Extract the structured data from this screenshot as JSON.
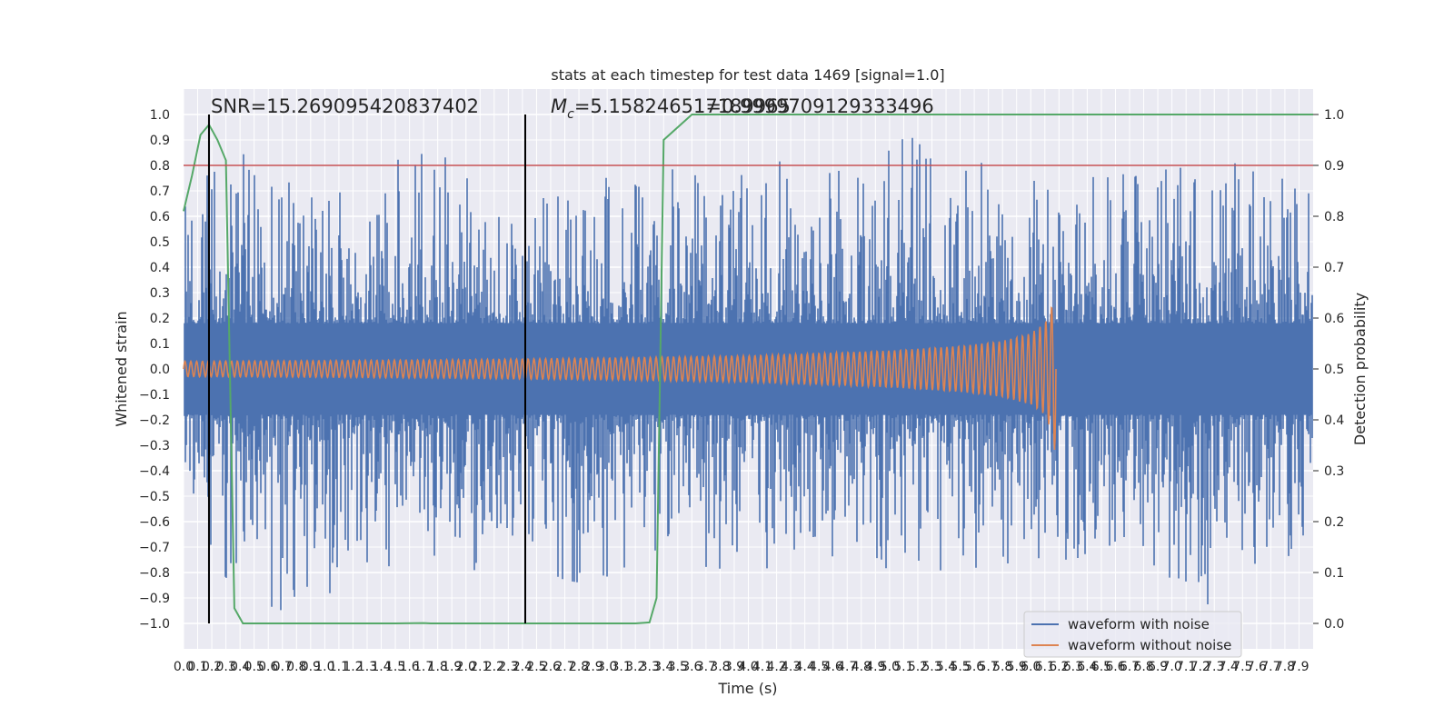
{
  "chart_data": {
    "type": "line",
    "title": "stats at each timestep for test data 1469 [signal=1.0]",
    "xlabel": "Time (s)",
    "ylabel": "Whitened strain",
    "y2label": "Detection probability",
    "xlim": [
      0.0,
      8.0
    ],
    "ylim": [
      -1.1,
      1.1
    ],
    "y2lim": [
      -0.05,
      1.05
    ],
    "grid": true,
    "x_tick_values": [
      0.0,
      0.1,
      0.2,
      0.3,
      0.4,
      0.5,
      0.6,
      0.7,
      0.8,
      0.9,
      1.0,
      1.1,
      1.2,
      1.3,
      1.4,
      1.5,
      1.6,
      1.7,
      1.8,
      1.9,
      2.0,
      2.1,
      2.2,
      2.3,
      2.4,
      2.5,
      2.6,
      2.7,
      2.8,
      2.9,
      3.0,
      3.1,
      3.2,
      3.3,
      3.4,
      3.5,
      3.6,
      3.7,
      3.8,
      3.9,
      4.0,
      4.1,
      4.2,
      4.3,
      4.4,
      4.5,
      4.6,
      4.7,
      4.8,
      4.9,
      5.0,
      5.1,
      5.2,
      5.3,
      5.4,
      5.5,
      5.6,
      5.7,
      5.8,
      5.9,
      6.0,
      6.1,
      6.2,
      6.3,
      6.4,
      6.5,
      6.6,
      6.7,
      6.8,
      6.9,
      7.0,
      7.1,
      7.2,
      7.3,
      7.4,
      7.5,
      7.6,
      7.7,
      7.8,
      7.9
    ],
    "x_tick_labels": [
      "0.0",
      "0.1",
      "0.2",
      "0.3",
      "0.4",
      "0.5",
      "0.6",
      "0.7",
      "0.8",
      "0.9",
      "1.0",
      "1.1",
      "1.2",
      "1.3",
      "1.4",
      "1.5",
      "1.6",
      "1.7",
      "1.8",
      "1.9",
      "2.0",
      "2.1",
      "2.2",
      "2.3",
      "2.4",
      "2.5",
      "2.6",
      "2.7",
      "2.8",
      "2.9",
      "3.0",
      "3.1",
      "3.2",
      "3.3",
      "3.4",
      "3.5",
      "3.6",
      "3.7",
      "3.8",
      "3.9",
      "4.0",
      "4.1",
      "4.2",
      "4.3",
      "4.4",
      "4.5",
      "4.6",
      "4.7",
      "4.8",
      "4.9",
      "5.0",
      "5.1",
      "5.2",
      "5.3",
      "5.4",
      "5.5",
      "5.6",
      "5.7",
      "5.8",
      "5.9",
      "6.0",
      "6.1",
      "6.2",
      "6.3",
      "6.4",
      "6.5",
      "6.6",
      "6.7",
      "6.8",
      "6.9",
      "7.0",
      "7.1",
      "7.2",
      "7.3",
      "7.4",
      "7.5",
      "7.6",
      "7.7",
      "7.8",
      "7.9"
    ],
    "y_tick_values": [
      1.0,
      0.9,
      0.8,
      0.7,
      0.6,
      0.5,
      0.4,
      0.3,
      0.2,
      0.1,
      0.0,
      -0.1,
      -0.2,
      -0.3,
      -0.4,
      -0.5,
      -0.6,
      -0.7,
      -0.8,
      -0.9,
      -1.0
    ],
    "y_tick_labels": [
      "1.0",
      "0.9",
      "0.8",
      "0.7",
      "0.6",
      "0.5",
      "0.4",
      "0.3",
      "0.2",
      "0.1",
      "0.0",
      "−0.1",
      "−0.2",
      "−0.3",
      "−0.4",
      "−0.5",
      "−0.6",
      "−0.7",
      "−0.8",
      "−0.9",
      "−1.0"
    ],
    "y2_tick_values": [
      1.0,
      0.9,
      0.8,
      0.7,
      0.6,
      0.5,
      0.4,
      0.3,
      0.2,
      0.1,
      0.0
    ],
    "y2_tick_labels": [
      "1.0",
      "0.9",
      "0.8",
      "0.7",
      "0.6",
      "0.5",
      "0.4",
      "0.3",
      "0.2",
      "0.1",
      "0.0"
    ],
    "series": [
      {
        "name": "waveform with noise",
        "color": "#4c72b0",
        "axis": "left",
        "description": "noisy whitened strain, spans roughly -1.0 to 1.0 over 0-8 s",
        "envelope_x": [
          0.0,
          0.3,
          0.6,
          0.9,
          1.2,
          1.5,
          1.8,
          2.1,
          2.4,
          2.7,
          3.0,
          3.3,
          3.6,
          3.9,
          4.2,
          4.5,
          4.8,
          5.1,
          5.4,
          5.7,
          6.0,
          6.3,
          6.6,
          6.9,
          7.2,
          7.5,
          7.8,
          8.0
        ],
        "envelope_max": [
          0.65,
          0.91,
          0.75,
          0.78,
          0.72,
          0.82,
          0.86,
          0.7,
          0.76,
          0.81,
          0.78,
          0.79,
          0.89,
          0.75,
          0.82,
          0.76,
          0.8,
          0.99,
          0.86,
          0.8,
          0.77,
          0.8,
          0.86,
          0.78,
          0.8,
          0.81,
          0.79,
          0.76
        ],
        "envelope_min": [
          -0.6,
          -0.82,
          -0.93,
          -0.99,
          -0.75,
          -0.78,
          -0.73,
          -0.8,
          -0.75,
          -0.83,
          -0.86,
          -0.74,
          -0.81,
          -0.83,
          -0.77,
          -0.79,
          -0.76,
          -0.8,
          -0.79,
          -0.82,
          -0.79,
          -0.82,
          -0.8,
          -0.77,
          -0.95,
          -0.81,
          -0.79,
          -0.77
        ]
      },
      {
        "name": "waveform without noise",
        "color": "#dd8452",
        "axis": "left",
        "description": "chirp template, amplitude grows until merger near 6.2 s then ends",
        "amplitude_x": [
          0.0,
          1.0,
          2.0,
          3.0,
          4.0,
          5.0,
          5.5,
          5.8,
          6.0,
          6.1,
          6.15,
          6.18
        ],
        "amplitude": [
          0.03,
          0.033,
          0.037,
          0.043,
          0.052,
          0.072,
          0.09,
          0.11,
          0.14,
          0.18,
          0.25,
          0.36
        ],
        "merger_time": 6.18
      },
      {
        "name": "detection probability",
        "color": "#55a868",
        "axis": "right",
        "x": [
          0.0,
          0.06,
          0.12,
          0.18,
          0.24,
          0.3,
          0.36,
          0.42,
          0.5,
          1.0,
          1.5,
          1.7,
          1.75,
          2.0,
          2.5,
          2.9,
          3.0,
          3.2,
          3.3,
          3.35,
          3.4,
          3.6,
          4.0,
          5.0,
          6.0,
          7.0,
          8.0
        ],
        "y": [
          0.81,
          0.88,
          0.96,
          0.98,
          0.95,
          0.91,
          0.03,
          0.0,
          0.0,
          0.0,
          0.0,
          0.0007,
          0.0,
          0.0,
          0.0,
          0.0,
          0.0,
          0.0,
          0.002,
          0.05,
          0.95,
          1.0,
          1.0,
          1.0,
          1.0,
          1.0,
          1.0
        ]
      }
    ],
    "threshold": {
      "value": 0.8,
      "axis": "left",
      "color": "#c44e52"
    },
    "vertical_markers": [
      0.18,
      2.42
    ],
    "annotations": [
      "SNR=15.269095420837402",
      "=5.158246517189965",
      "1=0.9999709129333496"
    ],
    "mc_symbol": "M",
    "mc_subscript": "c",
    "legend": {
      "position": "lower-right",
      "entries": [
        "waveform with noise",
        "waveform without noise"
      ]
    }
  }
}
